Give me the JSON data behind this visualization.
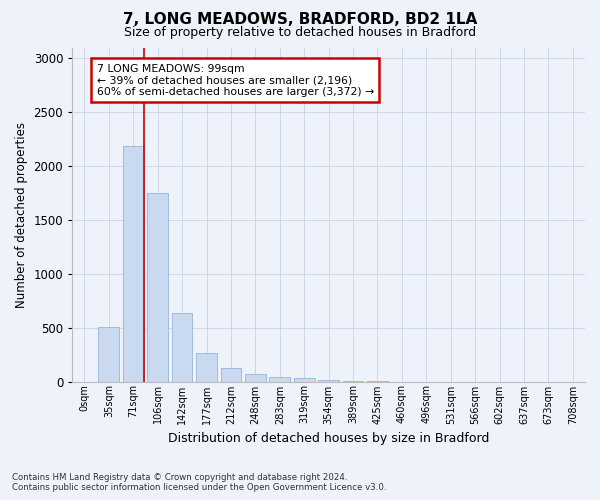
{
  "title_line1": "7, LONG MEADOWS, BRADFORD, BD2 1LA",
  "title_line2": "Size of property relative to detached houses in Bradford",
  "xlabel": "Distribution of detached houses by size in Bradford",
  "ylabel": "Number of detached properties",
  "categories": [
    "0sqm",
    "35sqm",
    "71sqm",
    "106sqm",
    "142sqm",
    "177sqm",
    "212sqm",
    "248sqm",
    "283sqm",
    "319sqm",
    "354sqm",
    "389sqm",
    "425sqm",
    "460sqm",
    "496sqm",
    "531sqm",
    "566sqm",
    "602sqm",
    "637sqm",
    "673sqm",
    "708sqm"
  ],
  "values": [
    0,
    510,
    2190,
    1750,
    635,
    260,
    130,
    70,
    40,
    30,
    10,
    5,
    3,
    0,
    0,
    0,
    0,
    0,
    0,
    0,
    0
  ],
  "bar_color": "#c8d9f0",
  "bar_edge_color": "#9ab4d8",
  "grid_color": "#c8d4e8",
  "annotation_text_line1": "7 LONG MEADOWS: 99sqm",
  "annotation_text_line2": "← 39% of detached houses are smaller (2,196)",
  "annotation_text_line3": "60% of semi-detached houses are larger (3,372) →",
  "annotation_box_facecolor": "#ffffff",
  "annotation_box_edgecolor": "#cc0000",
  "ylim": [
    0,
    3100
  ],
  "yticks": [
    0,
    500,
    1000,
    1500,
    2000,
    2500,
    3000
  ],
  "footnote_line1": "Contains HM Land Registry data © Crown copyright and database right 2024.",
  "footnote_line2": "Contains public sector information licensed under the Open Government Licence v3.0.",
  "background_color": "#eef2fa"
}
